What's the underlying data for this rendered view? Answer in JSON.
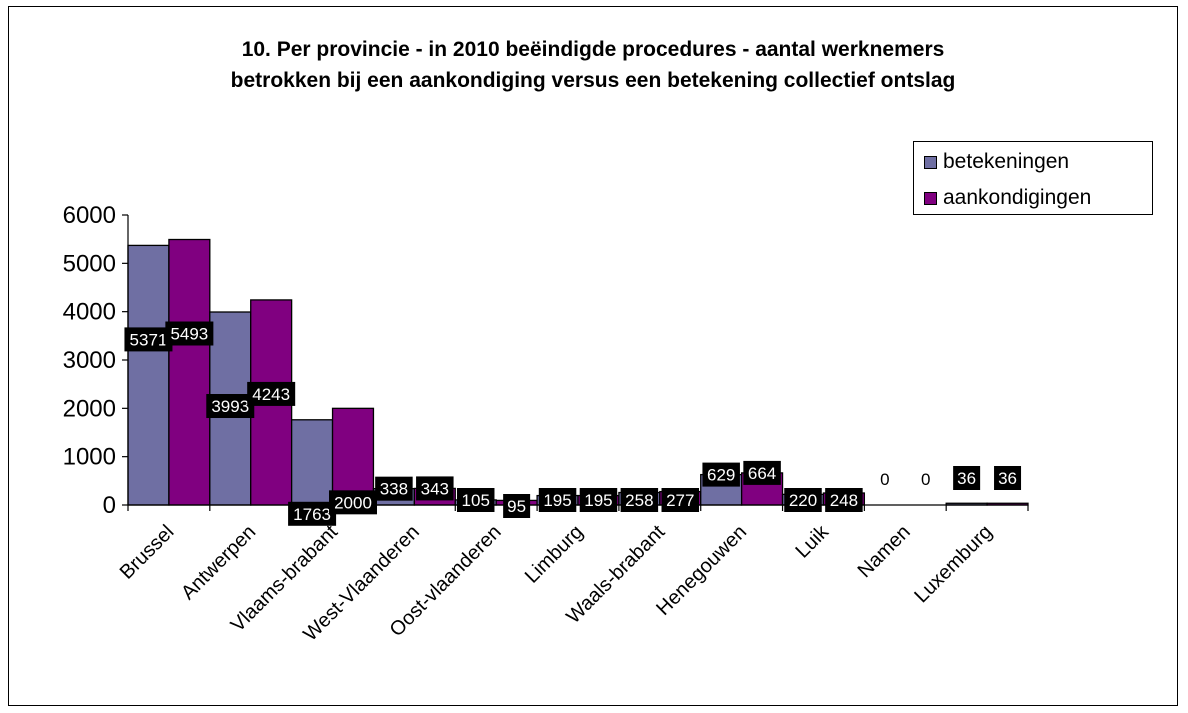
{
  "chart_data": {
    "type": "bar",
    "title_lines": [
      "10. Per provincie - in 2010 beëindigde procedures - aantal werknemers",
      "betrokken bij een aankondiging versus een betekening collectief ontslag"
    ],
    "categories": [
      "Brussel",
      "Antwerpen",
      "Vlaams-brabant",
      "West-Vlaanderen",
      "Oost-vlaanderen",
      "Limburg",
      "Waals-brabant",
      "Henegouwen",
      "Luik",
      "Namen",
      "Luxemburg"
    ],
    "series": [
      {
        "name": "betekeningen",
        "color": "#6f6fa3",
        "values": [
          5371,
          3993,
          1763,
          338,
          105,
          195,
          258,
          629,
          220,
          0,
          36
        ]
      },
      {
        "name": "aankondigingen",
        "color": "#800080",
        "values": [
          5493,
          4243,
          2000,
          343,
          95,
          195,
          277,
          664,
          248,
          0,
          36
        ]
      }
    ],
    "y_ticks": [
      "0",
      "1000",
      "2000",
      "3000",
      "4000",
      "5000",
      "6000"
    ],
    "ylim": [
      0,
      6000
    ],
    "legend_position": "top-right",
    "grid": false
  }
}
